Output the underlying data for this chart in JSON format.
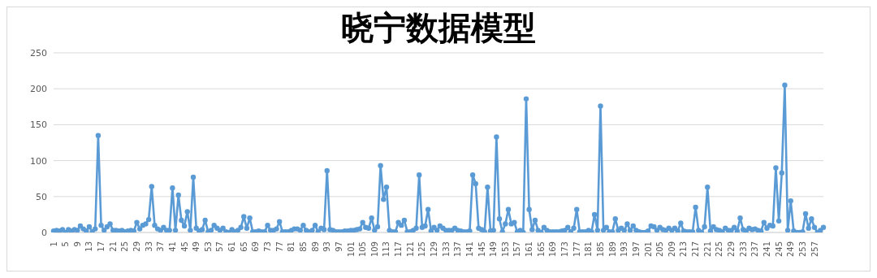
{
  "chart_data": {
    "type": "line",
    "title": "晓宁数据模型",
    "categories": [
      "1",
      null,
      null,
      null,
      "5",
      null,
      null,
      null,
      "9",
      null,
      null,
      null,
      "13",
      null,
      null,
      null,
      "17",
      null,
      null,
      null,
      "21",
      null,
      null,
      null,
      "25",
      null,
      null,
      null,
      "29",
      null,
      null,
      null,
      "33",
      null,
      null,
      null,
      "37",
      null,
      null,
      null,
      "41",
      null,
      null,
      null,
      "45",
      null,
      null,
      null,
      "49",
      null,
      null,
      null,
      "53",
      null,
      null,
      null,
      "57",
      null,
      null,
      null,
      "61",
      null,
      null,
      null,
      "65",
      null,
      null,
      null,
      "69",
      null,
      null,
      null,
      "73",
      null,
      null,
      null,
      "77",
      null,
      null,
      null,
      "81",
      null,
      null,
      null,
      "85",
      null,
      null,
      null,
      "89",
      null,
      null,
      null,
      "93",
      null,
      null,
      null,
      "97",
      null,
      null,
      null,
      "101",
      null,
      null,
      null,
      "105",
      null,
      null,
      null,
      "109",
      null,
      null,
      null,
      "113",
      null,
      null,
      null,
      "117",
      null,
      null,
      null,
      "121",
      null,
      null,
      null,
      "125",
      null,
      null,
      null,
      "129",
      null,
      null,
      null,
      "133",
      null,
      null,
      null,
      "137",
      null,
      null,
      null,
      "141",
      null,
      null,
      null,
      "145",
      null,
      null,
      null,
      "149",
      null,
      null,
      null,
      "153",
      null,
      null,
      null,
      "157",
      null,
      null,
      null,
      "161",
      null,
      null,
      null,
      "165",
      null,
      null,
      null,
      "169",
      null,
      null,
      null,
      "173",
      null,
      null,
      null,
      "177",
      null,
      null,
      null,
      "181",
      null,
      null,
      null,
      "185",
      null,
      null,
      null,
      "189",
      null,
      null,
      null,
      "193",
      null,
      null,
      null,
      "197",
      null,
      null,
      null,
      "201",
      null,
      null,
      null,
      "205",
      null,
      null,
      null,
      "209",
      null,
      null,
      null,
      "213",
      null,
      null,
      null,
      "217",
      null,
      null,
      null,
      "221",
      null,
      null,
      null,
      "225",
      null,
      null,
      null,
      "229",
      null,
      null,
      null,
      "233",
      null,
      null,
      null,
      "237",
      null,
      null,
      null,
      "241",
      null,
      null,
      null,
      "245",
      null,
      null,
      null,
      "249",
      null,
      null,
      null,
      "253",
      null,
      null,
      null,
      "257",
      null,
      null,
      null
    ],
    "values": [
      2,
      3,
      2,
      4,
      0,
      4,
      2,
      4,
      3,
      9,
      5,
      2,
      8,
      1,
      5,
      135,
      10,
      3,
      8,
      12,
      3,
      3,
      2,
      3,
      1,
      2,
      3,
      2,
      14,
      5,
      10,
      12,
      18,
      64,
      10,
      5,
      3,
      7,
      3,
      3,
      62,
      3,
      52,
      17,
      9,
      29,
      3,
      77,
      6,
      2,
      4,
      17,
      1,
      3,
      10,
      6,
      3,
      6,
      1,
      0,
      4,
      1,
      3,
      7,
      22,
      6,
      20,
      1,
      1,
      2,
      1,
      1,
      10,
      3,
      3,
      5,
      15,
      1,
      1,
      1,
      3,
      5,
      5,
      3,
      10,
      3,
      1,
      3,
      10,
      1,
      6,
      4,
      86,
      4,
      3,
      1,
      1,
      1,
      2,
      2,
      3,
      3,
      4,
      5,
      14,
      7,
      6,
      20,
      3,
      8,
      93,
      46,
      63,
      3,
      1,
      1,
      14,
      10,
      17,
      1,
      1,
      3,
      6,
      80,
      7,
      9,
      32,
      2,
      7,
      3,
      9,
      6,
      3,
      3,
      3,
      6,
      3,
      2,
      1,
      1,
      2,
      80,
      68,
      6,
      4,
      1,
      63,
      2,
      3,
      133,
      19,
      1,
      12,
      32,
      12,
      14,
      1,
      3,
      0,
      186,
      32,
      4,
      17,
      3,
      0,
      7,
      3,
      1,
      1,
      1,
      1,
      2,
      3,
      7,
      1,
      6,
      32,
      1,
      1,
      1,
      3,
      1,
      25,
      3,
      176,
      3,
      7,
      1,
      1,
      19,
      3,
      6,
      3,
      12,
      3,
      9,
      3,
      1,
      0,
      0,
      2,
      9,
      8,
      3,
      7,
      4,
      3,
      6,
      3,
      6,
      2,
      13,
      2,
      1,
      1,
      1,
      35,
      3,
      0,
      8,
      63,
      2,
      8,
      4,
      3,
      1,
      6,
      3,
      3,
      7,
      2,
      20,
      4,
      2,
      6,
      4,
      5,
      3,
      2,
      14,
      6,
      10,
      9,
      90,
      16,
      83,
      205,
      3,
      44,
      2,
      0,
      0,
      1,
      26,
      6,
      19,
      7,
      0,
      3,
      7
    ],
    "color": "#5b9bd5",
    "ylim": [
      0,
      250
    ],
    "yticks": [
      0,
      50,
      100,
      150,
      200,
      250
    ],
    "grid": "y",
    "marker": "circle",
    "line_style": "solid"
  }
}
